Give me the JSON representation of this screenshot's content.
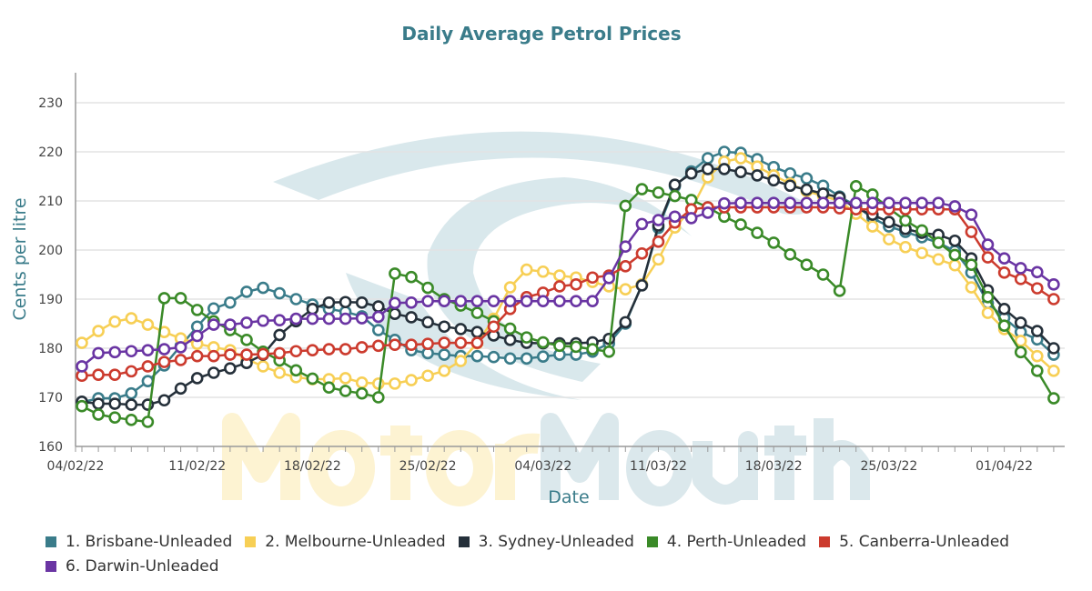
{
  "chart_data": {
    "type": "line",
    "title": "Daily Average Petrol Prices",
    "xlabel": "Date",
    "ylabel": "Cents per litre",
    "ylim": [
      160,
      230
    ],
    "yticks": [
      "160",
      "170",
      "180",
      "190",
      "200",
      "210",
      "220",
      "230"
    ],
    "xticks": [
      "04/02/22",
      "11/02/22",
      "18/02/22",
      "25/02/22",
      "04/03/22",
      "11/03/22",
      "18/03/22",
      "25/03/22",
      "01/04/22"
    ],
    "grid": true,
    "legend": "bottom",
    "watermark": "MotorMouth",
    "x": [
      "04/02/22",
      "05/02/22",
      "06/02/22",
      "07/02/22",
      "08/02/22",
      "09/02/22",
      "10/02/22",
      "11/02/22",
      "12/02/22",
      "13/02/22",
      "14/02/22",
      "15/02/22",
      "16/02/22",
      "17/02/22",
      "18/02/22",
      "19/02/22",
      "20/02/22",
      "21/02/22",
      "22/02/22",
      "23/02/22",
      "24/02/22",
      "25/02/22",
      "26/02/22",
      "27/02/22",
      "28/02/22",
      "01/03/22",
      "02/03/22",
      "03/03/22",
      "04/03/22",
      "05/03/22",
      "06/03/22",
      "07/03/22",
      "08/03/22",
      "09/03/22",
      "10/03/22",
      "11/03/22",
      "12/03/22",
      "13/03/22",
      "14/03/22",
      "15/03/22",
      "16/03/22",
      "17/03/22",
      "18/03/22",
      "19/03/22",
      "20/03/22",
      "21/03/22",
      "22/03/22",
      "23/03/22",
      "24/03/22",
      "25/03/22",
      "26/03/22",
      "27/03/22",
      "28/03/22",
      "29/03/22",
      "30/03/22",
      "31/03/22",
      "01/04/22",
      "02/04/22",
      "03/04/22",
      "04/04/22"
    ],
    "series": [
      {
        "name": "1. Brisbane-Unleaded",
        "color": "#3a7c8a",
        "values": [
          169,
          169.8,
          169.8,
          170.8,
          173.3,
          176.5,
          180.5,
          184.4,
          188.1,
          189.3,
          191.5,
          192.3,
          191.2,
          190,
          188.9,
          188,
          187.4,
          186.5,
          183.7,
          181.7,
          179.6,
          179,
          178.7,
          178.4,
          178.4,
          178.2,
          177.9,
          177.9,
          178.3,
          178.7,
          178.7,
          179.3,
          181,
          185,
          193,
          204.5,
          213,
          216,
          218.7,
          220,
          219.8,
          218.5,
          216.9,
          215.6,
          214.6,
          213.1,
          210.9,
          209,
          206.5,
          204.8,
          203.7,
          202.6,
          201.5,
          199.8,
          195.4,
          189.2,
          186.2,
          183.3,
          181.8,
          178.7
        ]
      },
      {
        "name": "2. Melbourne-Unleaded",
        "color": "#f7cf55",
        "values": [
          181.1,
          183.5,
          185.4,
          186.1,
          184.8,
          183.3,
          182,
          180.9,
          180.2,
          179.6,
          177.8,
          176.3,
          175,
          174.1,
          173.7,
          173.7,
          173.9,
          173,
          172.8,
          172.8,
          173.5,
          174.4,
          175.4,
          177.4,
          181,
          186,
          192.4,
          196,
          195.6,
          194.8,
          194.4,
          193.5,
          192.6,
          192,
          193,
          198.1,
          204.6,
          208.3,
          214.8,
          218,
          218.7,
          217,
          215.2,
          213.5,
          212,
          211,
          210,
          207.4,
          204.8,
          202.2,
          200.6,
          199.4,
          198.1,
          196.9,
          192.4,
          187.2,
          183.9,
          181.5,
          178.4,
          175.4
        ]
      },
      {
        "name": "3. Sydney-Unleaded",
        "color": "#25303a",
        "values": [
          169.1,
          168.7,
          168.7,
          168.5,
          168.5,
          169.4,
          171.8,
          173.9,
          175,
          175.9,
          177,
          178.7,
          182.7,
          185.5,
          188,
          189.3,
          189.4,
          189.3,
          188.5,
          187,
          186.3,
          185.3,
          184.4,
          183.9,
          183.3,
          182.6,
          181.7,
          181.1,
          181,
          181,
          181,
          181.2,
          181.9,
          185.3,
          192.8,
          205,
          213.3,
          215.6,
          216.5,
          216.5,
          215.9,
          215.2,
          214.2,
          213.1,
          212.3,
          211.5,
          210.7,
          208.5,
          207.2,
          205.7,
          204.3,
          203.5,
          203.1,
          201.9,
          198.3,
          191.8,
          188,
          185.2,
          183.5,
          180
        ]
      },
      {
        "name": "4. Perth-Unleaded",
        "color": "#3a8a28",
        "values": [
          168.2,
          166.5,
          165.9,
          165.4,
          165,
          190.2,
          190.2,
          187.8,
          185.5,
          183.7,
          181.7,
          179.3,
          177.5,
          175.5,
          173.8,
          172,
          171.3,
          170.8,
          170,
          195.2,
          194.5,
          192.3,
          190,
          188.7,
          187.2,
          185.5,
          184,
          182.2,
          181.2,
          180.5,
          180.3,
          179.8,
          179.3,
          209,
          212.4,
          211.7,
          211,
          210.2,
          208.7,
          206.8,
          205.2,
          203.5,
          201.5,
          199.1,
          197,
          195,
          191.7,
          213,
          211.3,
          208.5,
          206,
          204,
          201.5,
          199,
          197,
          190.4,
          184.6,
          179.2,
          175.4,
          169.8
        ]
      },
      {
        "name": "5. Canberra-Unleaded",
        "color": "#cc3b2e",
        "values": [
          174.4,
          174.6,
          174.6,
          175.3,
          176.3,
          177.2,
          177.6,
          178.4,
          178.4,
          178.7,
          178.7,
          178.8,
          179,
          179.4,
          179.6,
          179.8,
          179.8,
          180.2,
          180.5,
          180.7,
          180.7,
          180.9,
          181.1,
          181.1,
          181.1,
          184.4,
          188,
          190.4,
          191.3,
          192.6,
          193,
          194.4,
          194.8,
          196.7,
          199.3,
          201.7,
          205.6,
          208.3,
          208.7,
          208.7,
          208.7,
          208.7,
          208.7,
          208.7,
          208.7,
          208.7,
          208.5,
          208.3,
          208.3,
          208.3,
          208.3,
          208.3,
          208.3,
          208.3,
          203.7,
          198.5,
          195.4,
          194.1,
          192.2,
          190
        ]
      },
      {
        "name": "6. Darwin-Unleaded",
        "color": "#6a35a3",
        "values": [
          176.3,
          179,
          179.2,
          179.4,
          179.6,
          179.8,
          180.2,
          182.5,
          184.8,
          184.8,
          185.2,
          185.6,
          185.7,
          186,
          186,
          186,
          186,
          186.1,
          186.4,
          189.2,
          189.3,
          189.6,
          189.6,
          189.6,
          189.6,
          189.6,
          189.6,
          189.6,
          189.6,
          189.6,
          189.6,
          189.6,
          194.3,
          200.7,
          205.3,
          206.1,
          206.8,
          206.5,
          207.6,
          209.5,
          209.6,
          209.6,
          209.6,
          209.6,
          209.6,
          209.6,
          209.6,
          209.6,
          209.6,
          209.6,
          209.6,
          209.6,
          209.6,
          208.9,
          207.2,
          201.1,
          198.3,
          196.3,
          195.5,
          193
        ]
      }
    ]
  }
}
